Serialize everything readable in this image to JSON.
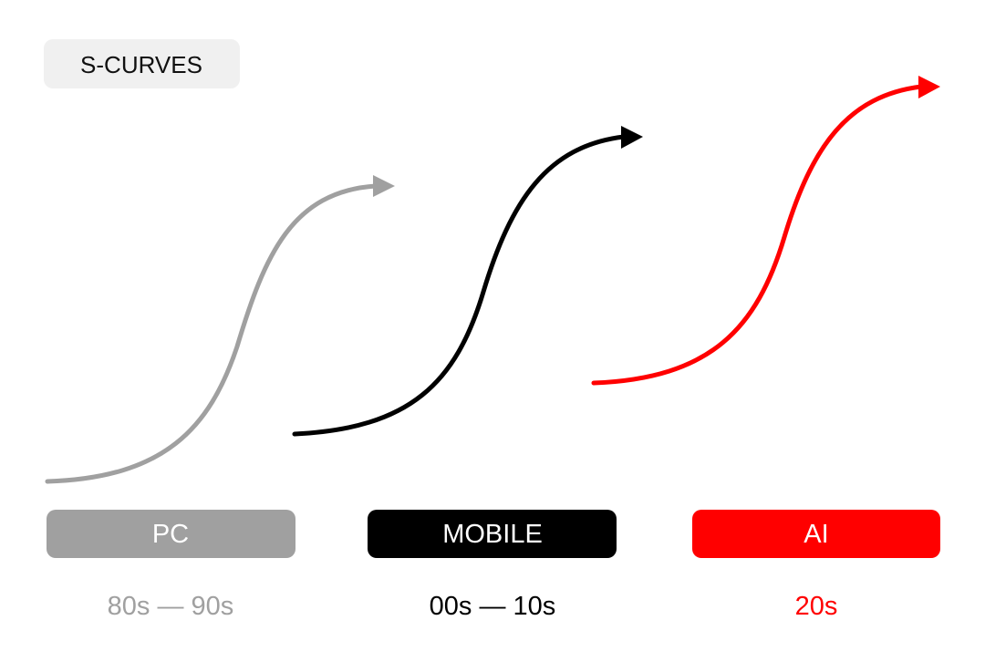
{
  "tag": "S-CURVES",
  "eras": [
    {
      "label": "PC",
      "period": "80s — 90s"
    },
    {
      "label": "MOBILE",
      "period": "00s — 10s"
    },
    {
      "label": "AI",
      "period": "20s"
    }
  ]
}
